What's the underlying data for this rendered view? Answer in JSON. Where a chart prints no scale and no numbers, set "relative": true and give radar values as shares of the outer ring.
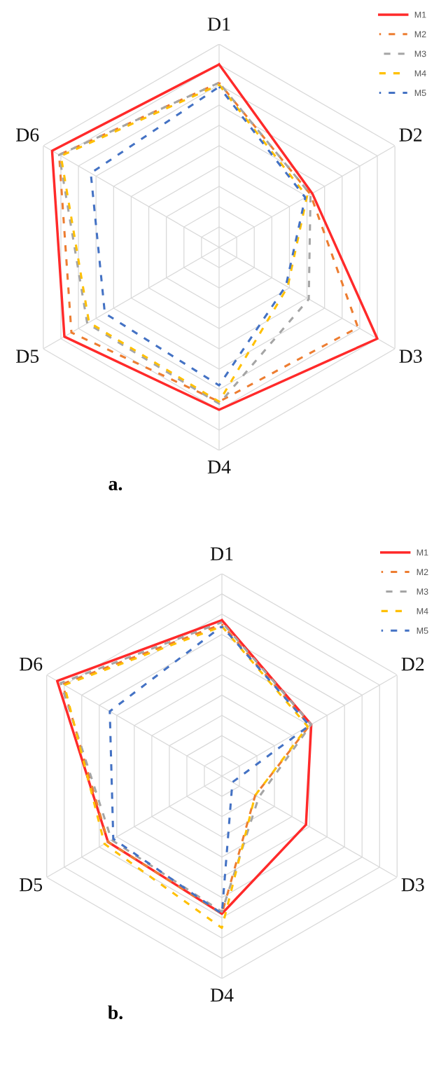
{
  "chart_data": [
    {
      "type": "radar",
      "relative": true,
      "grid": true,
      "legend": "top right",
      "categories": [
        "D1",
        "D2",
        "D3",
        "D4",
        "D5",
        "D6"
      ],
      "annotations": [
        "a."
      ],
      "series": [
        {
          "name": "M1",
          "color": "#ff2a2a",
          "line_style": "solid",
          "values": [
            0.9,
            0.53,
            0.9,
            0.8,
            0.88,
            0.95
          ]
        },
        {
          "name": "M2",
          "color": "#ed7d31",
          "line_style": "dashed",
          "values": [
            0.81,
            0.52,
            0.79,
            0.76,
            0.84,
            0.91
          ]
        },
        {
          "name": "M3",
          "color": "#a5a5a5",
          "line_style": "dashed",
          "values": [
            0.81,
            0.52,
            0.51,
            0.77,
            0.75,
            0.91
          ]
        },
        {
          "name": "M4",
          "color": "#ffc000",
          "line_style": "dashed",
          "values": [
            0.8,
            0.5,
            0.39,
            0.76,
            0.74,
            0.9
          ]
        },
        {
          "name": "M5",
          "color": "#4472c4",
          "line_style": "dashed",
          "values": [
            0.79,
            0.49,
            0.38,
            0.68,
            0.65,
            0.73
          ]
        }
      ]
    },
    {
      "type": "radar",
      "relative": true,
      "grid": true,
      "legend": "top right",
      "categories": [
        "D1",
        "D2",
        "D3",
        "D4",
        "D5",
        "D6"
      ],
      "annotations": [
        "b."
      ],
      "series": [
        {
          "name": "M1",
          "color": "#ff2a2a",
          "line_style": "solid",
          "values": [
            0.77,
            0.51,
            0.48,
            0.68,
            0.65,
            0.94
          ]
        },
        {
          "name": "M2",
          "color": "#ed7d31",
          "line_style": "dashed",
          "values": [
            0.75,
            0.5,
            0.19,
            0.68,
            0.65,
            0.91
          ]
        },
        {
          "name": "M3",
          "color": "#a5a5a5",
          "line_style": "dashed",
          "values": [
            0.76,
            0.51,
            0.21,
            0.67,
            0.63,
            0.92
          ]
        },
        {
          "name": "M4",
          "color": "#ffc000",
          "line_style": "dashed",
          "values": [
            0.74,
            0.49,
            0.19,
            0.75,
            0.67,
            0.9
          ]
        },
        {
          "name": "M5",
          "color": "#4472c4",
          "line_style": "dashed",
          "values": [
            0.74,
            0.5,
            0.06,
            0.68,
            0.62,
            0.64
          ]
        }
      ]
    }
  ]
}
